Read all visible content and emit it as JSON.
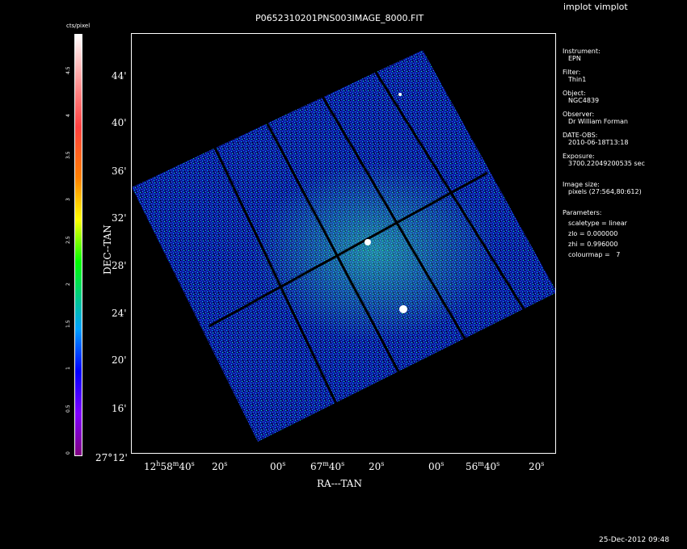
{
  "header": {
    "title": "P0652310201PNS003IMAGE_8000.FIT",
    "app_title": "implot vimplot"
  },
  "colorbar": {
    "unit": "cts/pixel",
    "ticks": [
      "0",
      "0.5",
      "1",
      "1.5",
      "2",
      "2.5",
      "3",
      "3.5",
      "4",
      "4.5"
    ]
  },
  "axes": {
    "xlabel": "RA---TAN",
    "ylabel": "DEC--TAN",
    "x_ticks": [
      {
        "h": "12",
        "hs": "h",
        "m": "58",
        "ms": "m",
        "s": "40",
        "ss": "s"
      },
      {
        "s": "20",
        "ss": "s"
      },
      {
        "s": "00",
        "ss": "s"
      },
      {
        "m": "67",
        "ms": "m",
        "s": "40",
        "ss": "s"
      },
      {
        "s": "20",
        "ss": "s"
      },
      {
        "s": "00",
        "ss": "s"
      },
      {
        "m": "56",
        "ms": "m",
        "s": "40",
        "ss": "s"
      },
      {
        "s": "20",
        "ss": "s"
      }
    ],
    "y_ticks": [
      "44'",
      "40'",
      "36'",
      "32'",
      "28'",
      "24'",
      "20'",
      "16'"
    ],
    "y_origin": "27°12'"
  },
  "info": {
    "instrument_label": "Instrument:",
    "instrument": "EPN",
    "filter_label": "Filter:",
    "filter": "Thin1",
    "object_label": "Object:",
    "object": "NGC4839",
    "observer_label": "Observer:",
    "observer": "Dr William Forman",
    "date_label": "DATE-OBS:",
    "date": "2010-06-18T13:18",
    "exposure_label": "Exposure:",
    "exposure": "3700.22049200535 sec",
    "imagesize_label": "Image size:",
    "imagesize": "pixels (27:564,80:612)",
    "params_label": "Parameters:",
    "scaletype": "scaletype = linear",
    "zlo": "zlo = 0.000000",
    "zhi": "zhi = 0.996000",
    "colourmap": "colourmap =   7"
  },
  "footer": {
    "timestamp": "25-Dec-2012 09:48"
  }
}
